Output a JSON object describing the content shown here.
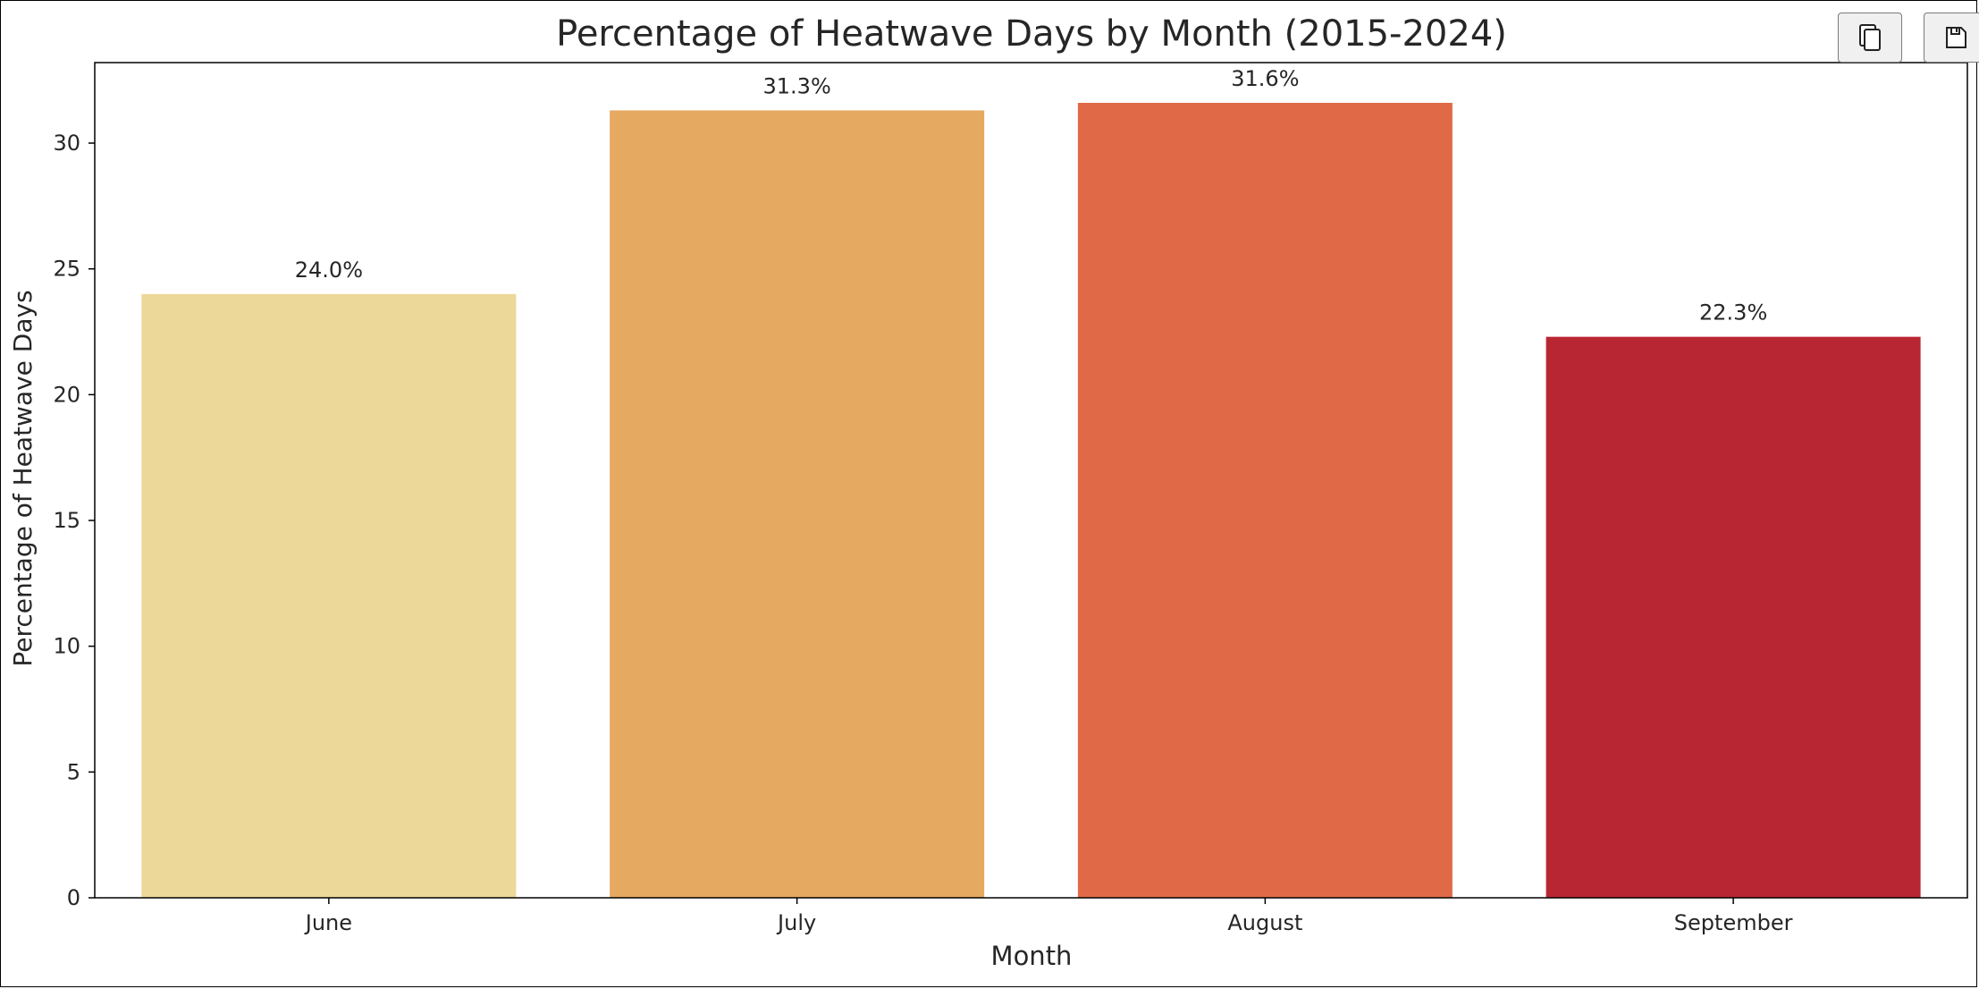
{
  "toolbar": {
    "copy_icon": "copy-icon",
    "save_icon": "save-icon"
  },
  "chart_data": {
    "type": "bar",
    "title": "Percentage of Heatwave Days by Month (2015-2024)",
    "xlabel": "Month",
    "ylabel": "Percentage of Heatwave Days",
    "categories": [
      "June",
      "July",
      "August",
      "September"
    ],
    "values": [
      24.0,
      31.3,
      31.6,
      22.3
    ],
    "value_labels": [
      "24.0%",
      "31.3%",
      "31.6%",
      "22.3%"
    ],
    "colors": [
      "#ecd898",
      "#e6a962",
      "#e06a48",
      "#b92633"
    ],
    "ylim": [
      0,
      33.2
    ],
    "yticks": [
      0,
      5,
      10,
      15,
      20,
      25,
      30
    ],
    "grid": false,
    "legend": "none"
  }
}
